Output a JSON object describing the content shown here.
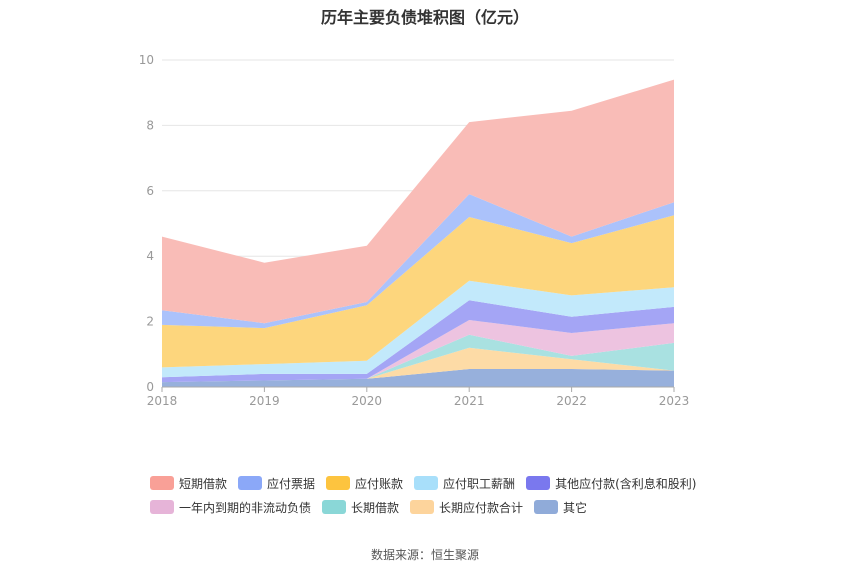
{
  "title": "历年主要负债堆积图（亿元）",
  "source_text": "数据来源：恒生聚源",
  "chart_data": {
    "type": "area",
    "stacked": true,
    "title": "历年主要负债堆积图（亿元）",
    "x": [
      "2018",
      "2019",
      "2020",
      "2021",
      "2022",
      "2023"
    ],
    "ylim": [
      0,
      10
    ],
    "yticks": [
      0,
      2,
      4,
      6,
      8,
      10
    ],
    "grid": true,
    "legend_position": "bottom",
    "series": [
      {
        "name": "其它",
        "color": "#97b0dc",
        "values": [
          0.15,
          0.2,
          0.25,
          0.55,
          0.55,
          0.5
        ]
      },
      {
        "name": "长期应付款合计",
        "color": "#fddba6",
        "values": [
          0.0,
          0.0,
          0.0,
          0.65,
          0.3,
          0.0
        ]
      },
      {
        "name": "长期借款",
        "color": "#a9e1e1",
        "values": [
          0.0,
          0.0,
          0.0,
          0.4,
          0.1,
          0.85
        ]
      },
      {
        "name": "一年内到期的非流动负债",
        "color": "#edc3e0",
        "values": [
          0.0,
          0.0,
          0.0,
          0.45,
          0.7,
          0.6
        ]
      },
      {
        "name": "其他应付款(含利息和股利)",
        "color": "#a4a5f5",
        "values": [
          0.15,
          0.2,
          0.15,
          0.6,
          0.5,
          0.5
        ]
      },
      {
        "name": "应付职工薪酬",
        "color": "#c2e9fb",
        "values": [
          0.3,
          0.3,
          0.4,
          0.6,
          0.65,
          0.6
        ]
      },
      {
        "name": "应付账款",
        "color": "#fdd67d",
        "values": [
          1.3,
          1.1,
          1.7,
          1.95,
          1.6,
          2.2
        ]
      },
      {
        "name": "应付票据",
        "color": "#abc2fb",
        "values": [
          0.45,
          0.15,
          0.1,
          0.7,
          0.2,
          0.4
        ]
      },
      {
        "name": "短期借款",
        "color": "#f9bcb7",
        "values": [
          2.25,
          1.85,
          1.72,
          2.2,
          3.85,
          3.75
        ]
      }
    ]
  },
  "legend": {
    "rows": [
      [
        {
          "label": "短期借款",
          "color": "#f9a097"
        },
        {
          "label": "应付票据",
          "color": "#8ba8f8"
        },
        {
          "label": "应付账款",
          "color": "#fdc43f"
        },
        {
          "label": "应付职工薪酬",
          "color": "#a8dffa"
        },
        {
          "label": "其他应付款(含利息和股利)",
          "color": "#7a78ee"
        }
      ],
      [
        {
          "label": "一年内到期的非流动负债",
          "color": "#e6b4d8"
        },
        {
          "label": "长期借款",
          "color": "#8ad7d7"
        },
        {
          "label": "长期应付款合计",
          "color": "#fdd49c"
        },
        {
          "label": "其它",
          "color": "#90abd9"
        }
      ]
    ]
  }
}
